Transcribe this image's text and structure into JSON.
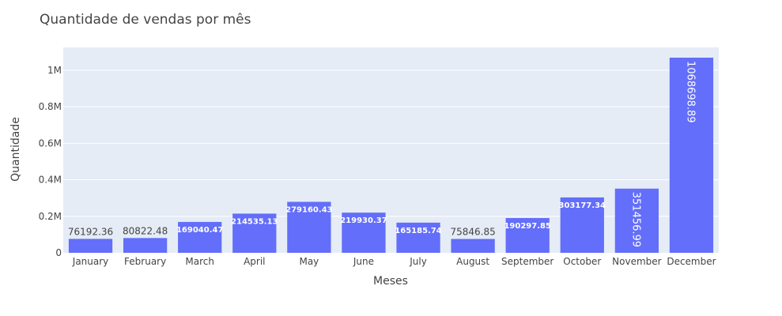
{
  "chart_data": {
    "type": "bar",
    "title": "Quantidade de vendas por mês",
    "xlabel": "Meses",
    "ylabel": "Quantidade",
    "categories": [
      "January",
      "February",
      "March",
      "April",
      "May",
      "June",
      "July",
      "August",
      "September",
      "October",
      "November",
      "December"
    ],
    "values": [
      76192.36,
      80822.48,
      169040.47,
      214535.13,
      279160.43,
      219930.37,
      165185.74,
      75846.85,
      190297.85,
      303177.34,
      351456.99,
      1068698.89
    ],
    "value_labels": [
      "76192.36",
      "80822.48",
      "169040.47",
      "214535.13",
      "279160.43",
      "219930.37",
      "165185.74",
      "75846.85",
      "190297.85",
      "303177.34",
      "351456.99",
      "1068698.89"
    ],
    "ylim": [
      0,
      1124946.2
    ],
    "yticks": [
      0,
      200000,
      400000,
      600000,
      800000,
      1000000
    ],
    "ytick_labels": [
      "0",
      "0.2M",
      "0.4M",
      "0.6M",
      "0.8M",
      "1M"
    ],
    "grid": true,
    "colors": {
      "bar": "#636efa",
      "plot_bg": "#e5ecf6",
      "grid": "#ffffff"
    }
  }
}
